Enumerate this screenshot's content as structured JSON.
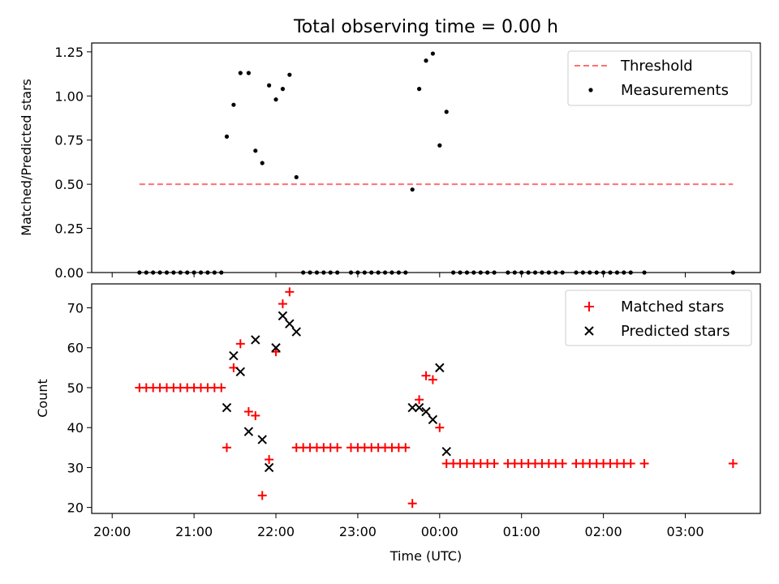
{
  "chart_data": [
    {
      "type": "scatter",
      "title": "Total observing time = 0.00 h",
      "xlabel": "",
      "ylabel": "Matched/Predicted stars",
      "ylim": [
        0,
        1.3
      ],
      "yticks": [
        "0.00",
        "0.25",
        "0.50",
        "0.75",
        "1.00",
        "1.25"
      ],
      "xlim_minutes": [
        -15,
        475
      ],
      "legend_position": "top-right",
      "colors": {
        "threshold": "#ff7070",
        "measurements": "#000000"
      },
      "threshold": {
        "name": "Threshold",
        "value": 0.5,
        "x_start": "20:20",
        "x_end": "03:35"
      },
      "series": [
        {
          "name": "Measurements",
          "points": [
            [
              "20:20",
              0
            ],
            [
              "20:25",
              0
            ],
            [
              "20:30",
              0
            ],
            [
              "20:35",
              0
            ],
            [
              "20:40",
              0
            ],
            [
              "20:45",
              0
            ],
            [
              "20:50",
              0
            ],
            [
              "20:55",
              0
            ],
            [
              "21:00",
              0
            ],
            [
              "21:05",
              0
            ],
            [
              "21:10",
              0
            ],
            [
              "21:15",
              0
            ],
            [
              "21:20",
              0
            ],
            [
              "21:24",
              0.77
            ],
            [
              "21:29",
              0.95
            ],
            [
              "21:34",
              1.13
            ],
            [
              "21:40",
              1.13
            ],
            [
              "21:45",
              0.69
            ],
            [
              "21:50",
              0.62
            ],
            [
              "21:55",
              1.06
            ],
            [
              "22:00",
              0.98
            ],
            [
              "22:05",
              1.04
            ],
            [
              "22:10",
              1.12
            ],
            [
              "22:15",
              0.54
            ],
            [
              "22:20",
              0
            ],
            [
              "22:25",
              0
            ],
            [
              "22:30",
              0
            ],
            [
              "22:35",
              0
            ],
            [
              "22:40",
              0
            ],
            [
              "22:45",
              0
            ],
            [
              "22:55",
              0
            ],
            [
              "23:00",
              0
            ],
            [
              "23:05",
              0
            ],
            [
              "23:10",
              0
            ],
            [
              "23:15",
              0
            ],
            [
              "23:20",
              0
            ],
            [
              "23:25",
              0
            ],
            [
              "23:30",
              0
            ],
            [
              "23:35",
              0
            ],
            [
              "23:40",
              0.47
            ],
            [
              "23:45",
              1.04
            ],
            [
              "23:50",
              1.2
            ],
            [
              "23:55",
              1.24
            ],
            [
              "00:00",
              0.72
            ],
            [
              "00:05",
              0.91
            ],
            [
              "00:10",
              0
            ],
            [
              "00:15",
              0
            ],
            [
              "00:20",
              0
            ],
            [
              "00:25",
              0
            ],
            [
              "00:30",
              0
            ],
            [
              "00:35",
              0
            ],
            [
              "00:40",
              0
            ],
            [
              "00:50",
              0
            ],
            [
              "00:55",
              0
            ],
            [
              "01:00",
              0
            ],
            [
              "01:05",
              0
            ],
            [
              "01:10",
              0
            ],
            [
              "01:15",
              0
            ],
            [
              "01:20",
              0
            ],
            [
              "01:25",
              0
            ],
            [
              "01:30",
              0
            ],
            [
              "01:40",
              0
            ],
            [
              "01:45",
              0
            ],
            [
              "01:50",
              0
            ],
            [
              "01:55",
              0
            ],
            [
              "02:00",
              0
            ],
            [
              "02:05",
              0
            ],
            [
              "02:10",
              0
            ],
            [
              "02:15",
              0
            ],
            [
              "02:20",
              0
            ],
            [
              "02:30",
              0
            ],
            [
              "03:35",
              0
            ]
          ]
        }
      ]
    },
    {
      "type": "scatter",
      "title": "",
      "xlabel": "Time (UTC)",
      "ylabel": "Count",
      "ylim": [
        18.5,
        76
      ],
      "yticks": [
        "20",
        "30",
        "40",
        "50",
        "60",
        "70"
      ],
      "xticks": [
        "20:00",
        "21:00",
        "22:00",
        "23:00",
        "00:00",
        "01:00",
        "02:00",
        "03:00"
      ],
      "xlim_minutes": [
        -15,
        475
      ],
      "legend_position": "top-right",
      "colors": {
        "matched": "#ff0000",
        "predicted": "#000000"
      },
      "series": [
        {
          "name": "Matched stars",
          "marker": "plus",
          "points": [
            [
              "20:20",
              50
            ],
            [
              "20:25",
              50
            ],
            [
              "20:30",
              50
            ],
            [
              "20:35",
              50
            ],
            [
              "20:40",
              50
            ],
            [
              "20:45",
              50
            ],
            [
              "20:50",
              50
            ],
            [
              "20:55",
              50
            ],
            [
              "21:00",
              50
            ],
            [
              "21:05",
              50
            ],
            [
              "21:10",
              50
            ],
            [
              "21:15",
              50
            ],
            [
              "21:20",
              50
            ],
            [
              "21:24",
              35
            ],
            [
              "21:29",
              55
            ],
            [
              "21:34",
              61
            ],
            [
              "21:40",
              44
            ],
            [
              "21:45",
              43
            ],
            [
              "21:50",
              23
            ],
            [
              "21:55",
              32
            ],
            [
              "22:00",
              59
            ],
            [
              "22:05",
              71
            ],
            [
              "22:10",
              74
            ],
            [
              "22:15",
              35
            ],
            [
              "22:20",
              35
            ],
            [
              "22:25",
              35
            ],
            [
              "22:30",
              35
            ],
            [
              "22:35",
              35
            ],
            [
              "22:40",
              35
            ],
            [
              "22:45",
              35
            ],
            [
              "22:55",
              35
            ],
            [
              "23:00",
              35
            ],
            [
              "23:05",
              35
            ],
            [
              "23:10",
              35
            ],
            [
              "23:15",
              35
            ],
            [
              "23:20",
              35
            ],
            [
              "23:25",
              35
            ],
            [
              "23:30",
              35
            ],
            [
              "23:35",
              35
            ],
            [
              "23:40",
              21
            ],
            [
              "23:45",
              47
            ],
            [
              "23:50",
              53
            ],
            [
              "23:55",
              52
            ],
            [
              "00:00",
              40
            ],
            [
              "00:05",
              31
            ],
            [
              "00:10",
              31
            ],
            [
              "00:15",
              31
            ],
            [
              "00:20",
              31
            ],
            [
              "00:25",
              31
            ],
            [
              "00:30",
              31
            ],
            [
              "00:35",
              31
            ],
            [
              "00:40",
              31
            ],
            [
              "00:50",
              31
            ],
            [
              "00:55",
              31
            ],
            [
              "01:00",
              31
            ],
            [
              "01:05",
              31
            ],
            [
              "01:10",
              31
            ],
            [
              "01:15",
              31
            ],
            [
              "01:20",
              31
            ],
            [
              "01:25",
              31
            ],
            [
              "01:30",
              31
            ],
            [
              "01:40",
              31
            ],
            [
              "01:45",
              31
            ],
            [
              "01:50",
              31
            ],
            [
              "01:55",
              31
            ],
            [
              "02:00",
              31
            ],
            [
              "02:05",
              31
            ],
            [
              "02:10",
              31
            ],
            [
              "02:15",
              31
            ],
            [
              "02:20",
              31
            ],
            [
              "02:30",
              31
            ],
            [
              "03:35",
              31
            ]
          ]
        },
        {
          "name": "Predicted stars",
          "marker": "x",
          "points": [
            [
              "21:24",
              45
            ],
            [
              "21:29",
              58
            ],
            [
              "21:34",
              54
            ],
            [
              "21:40",
              39
            ],
            [
              "21:45",
              62
            ],
            [
              "21:50",
              37
            ],
            [
              "21:55",
              30
            ],
            [
              "22:00",
              60
            ],
            [
              "22:05",
              68
            ],
            [
              "22:10",
              66
            ],
            [
              "22:15",
              64
            ],
            [
              "23:40",
              45
            ],
            [
              "23:45",
              45
            ],
            [
              "23:50",
              44
            ],
            [
              "23:55",
              42
            ],
            [
              "00:00",
              55
            ],
            [
              "00:05",
              34
            ]
          ]
        }
      ]
    }
  ]
}
